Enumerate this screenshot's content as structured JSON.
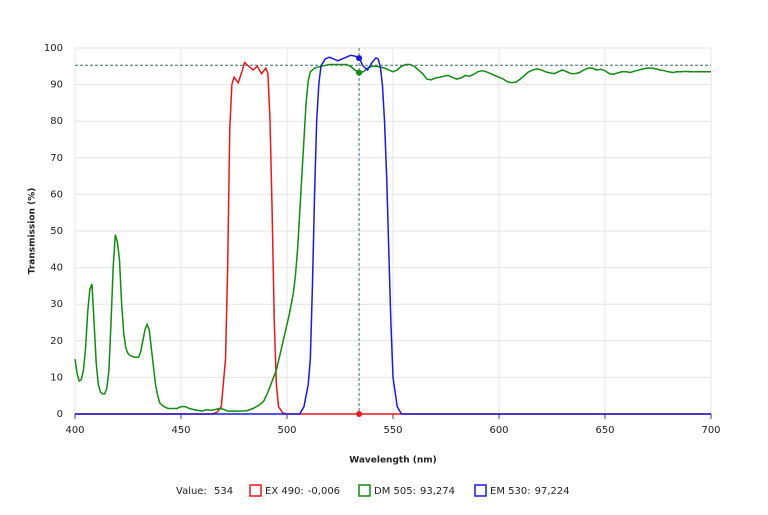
{
  "chart_data": {
    "type": "line",
    "xlabel": "Wavelength (nm)",
    "ylabel": "Transmission (%)",
    "xlim": [
      400,
      700
    ],
    "ylim": [
      0,
      100
    ],
    "xticks": [
      400,
      450,
      500,
      550,
      600,
      650,
      700
    ],
    "yticks": [
      0,
      10,
      20,
      30,
      40,
      50,
      60,
      70,
      80,
      90,
      100
    ],
    "grid": true,
    "cursor": {
      "label": "Value:",
      "x": 534,
      "y": 95.3
    },
    "series": [
      {
        "name": "EX 490:",
        "color": "#e31a1c",
        "cursor_value": -0.006,
        "cursor_value_label": "-0,006",
        "x": [
          400,
          465,
          467,
          469,
          471,
          472,
          473,
          474,
          475,
          477,
          479,
          480,
          482,
          484,
          486,
          488,
          490,
          491,
          492,
          493,
          494,
          495,
          496,
          498,
          500,
          700
        ],
        "values": [
          0,
          0,
          0.5,
          2,
          15,
          40,
          78,
          90,
          92,
          90.5,
          94,
          96,
          95,
          94,
          95,
          93,
          94.5,
          93,
          80,
          55,
          25,
          8,
          2,
          0.3,
          0,
          0
        ]
      },
      {
        "name": "DM 505:",
        "color": "#138a13",
        "cursor_value": 93.274,
        "cursor_value_label": "93,274",
        "x": [
          400,
          401,
          402,
          403,
          404,
          405,
          406,
          407,
          408,
          409,
          410,
          411,
          412,
          413,
          414,
          415,
          416,
          417,
          418,
          419,
          420,
          421,
          422,
          423,
          424,
          425,
          426,
          428,
          430,
          431,
          432,
          433,
          434,
          435,
          436,
          437,
          438,
          439,
          440,
          442,
          444,
          446,
          448,
          450,
          452,
          454,
          456,
          458,
          460,
          462,
          464,
          466,
          468,
          470,
          472,
          475,
          478,
          481,
          484,
          487,
          489,
          491,
          493,
          495,
          497,
          499,
          501,
          503,
          504,
          505,
          506,
          507,
          508,
          509,
          510,
          511,
          513,
          516,
          520,
          524,
          528,
          530,
          532,
          534,
          536,
          538,
          540,
          542,
          544,
          546,
          548,
          550,
          552,
          554,
          556,
          558,
          560,
          562,
          564,
          566,
          568,
          570,
          572,
          574,
          576,
          578,
          580,
          582,
          584,
          586,
          588,
          590,
          592,
          594,
          596,
          598,
          600,
          602,
          604,
          606,
          608,
          610,
          612,
          614,
          616,
          618,
          620,
          622,
          624,
          626,
          628,
          630,
          632,
          634,
          636,
          638,
          640,
          642,
          644,
          646,
          648,
          650,
          652,
          654,
          656,
          658,
          660,
          662,
          664,
          666,
          668,
          670,
          672,
          674,
          676,
          678,
          680,
          682,
          684,
          686,
          688,
          690,
          700
        ],
        "values": [
          15,
          11,
          9,
          9.5,
          12,
          18,
          28,
          34,
          35.5,
          25,
          14,
          8,
          6,
          5.5,
          5.5,
          7,
          12,
          25,
          40,
          49,
          47,
          42,
          30,
          22,
          18,
          16.5,
          16,
          15.5,
          15.5,
          17,
          20,
          23,
          24.5,
          23,
          18,
          13,
          8,
          5,
          3,
          2,
          1.5,
          1.5,
          1.5,
          2,
          2,
          1.5,
          1.2,
          1,
          0.8,
          1.2,
          1,
          1.2,
          1.5,
          1.3,
          0.8,
          0.8,
          0.8,
          0.9,
          1.5,
          2.5,
          3.5,
          6,
          9,
          12,
          17,
          22,
          27,
          33,
          38,
          45,
          55,
          65,
          75,
          85,
          91,
          93.5,
          94.5,
          95,
          95.5,
          95.5,
          95.5,
          95,
          94,
          93.3,
          93.5,
          94.5,
          95,
          95,
          94.8,
          94.5,
          94,
          93.5,
          94,
          95,
          95.5,
          95.5,
          95,
          94,
          93,
          91.5,
          91.3,
          91.8,
          92,
          92.3,
          92.5,
          92,
          91.5,
          91.8,
          92.5,
          92.3,
          92.8,
          93.5,
          93.8,
          93.5,
          93,
          92.5,
          92,
          91.5,
          90.8,
          90.5,
          90.7,
          91.5,
          92.5,
          93.5,
          94,
          94.3,
          94,
          93.5,
          93.2,
          93,
          93.5,
          94,
          93.5,
          93,
          93,
          93.3,
          94,
          94.5,
          94.5,
          94,
          94.2,
          93.8,
          93,
          92.8,
          93.2,
          93.5,
          93.5,
          93.3,
          93.7,
          94,
          94.3,
          94.5,
          94.5,
          94.3,
          94,
          93.8,
          93.5,
          93.3,
          93.5,
          93.5,
          93.6,
          93.5,
          93.5
        ]
      },
      {
        "name": "EM 530:",
        "color": "#1a1adb",
        "cursor_value": 97.224,
        "cursor_value_label": "97,224",
        "x": [
          400,
          506,
          508,
          510,
          511,
          512,
          513,
          514,
          515,
          516,
          518,
          520,
          522,
          524,
          526,
          528,
          530,
          532,
          534,
          536,
          538,
          540,
          542,
          543,
          544,
          545,
          546,
          547,
          548,
          549,
          550,
          552,
          554,
          700
        ],
        "values": [
          0,
          0,
          2,
          8,
          15,
          35,
          60,
          80,
          90,
          95,
          97,
          97.5,
          97,
          96.5,
          97,
          97.5,
          98,
          97.8,
          97.2,
          95,
          94,
          96,
          97.3,
          97,
          95,
          90,
          80,
          65,
          45,
          25,
          10,
          2,
          0,
          0
        ]
      }
    ]
  }
}
